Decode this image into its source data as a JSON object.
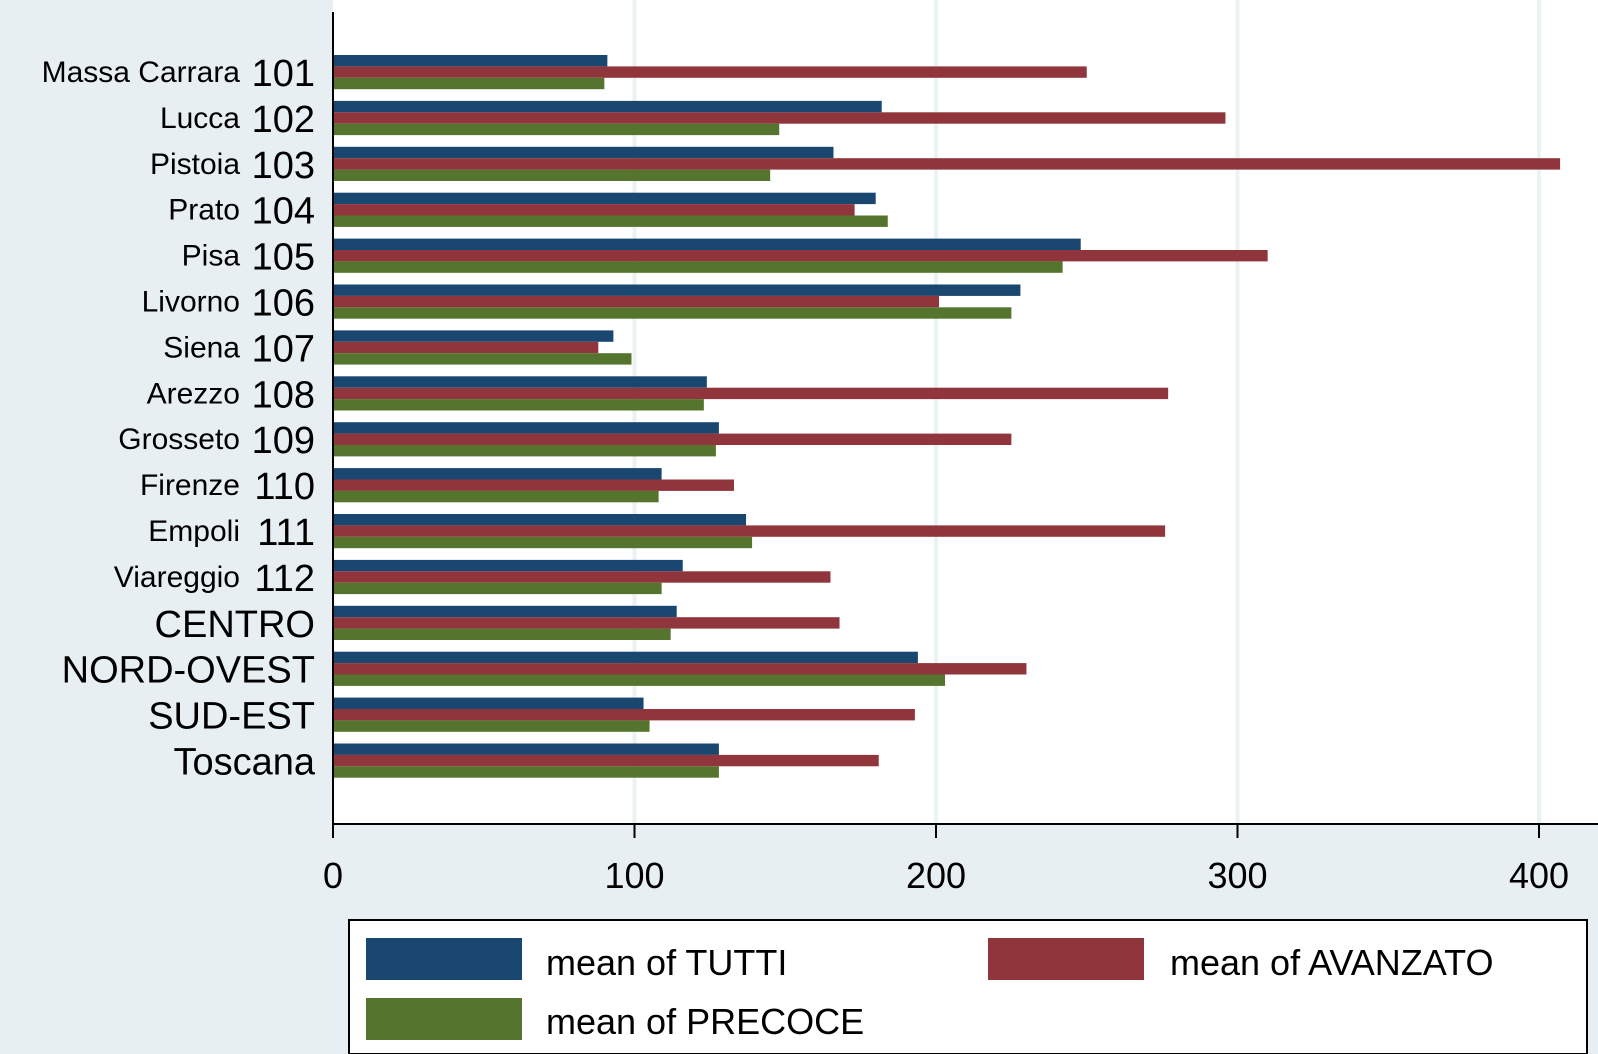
{
  "chart_data": {
    "type": "bar",
    "orientation": "horizontal",
    "grouped": true,
    "title": "",
    "xlabel": "",
    "ylabel": "",
    "xlim": [
      0,
      420
    ],
    "xticks": [
      0,
      100,
      200,
      300,
      400
    ],
    "grid": true,
    "legend_position": "bottom",
    "categories": [
      {
        "name": "Massa Carrara",
        "code": "101"
      },
      {
        "name": "Lucca",
        "code": "102"
      },
      {
        "name": "Pistoia",
        "code": "103"
      },
      {
        "name": "Prato",
        "code": "104"
      },
      {
        "name": "Pisa",
        "code": "105"
      },
      {
        "name": "Livorno",
        "code": "106"
      },
      {
        "name": "Siena",
        "code": "107"
      },
      {
        "name": "Arezzo",
        "code": "108"
      },
      {
        "name": "Grosseto",
        "code": "109"
      },
      {
        "name": "Firenze",
        "code": "110"
      },
      {
        "name": "Empoli",
        "code": "111"
      },
      {
        "name": "Viareggio",
        "code": "112"
      },
      {
        "name": "",
        "code": "CENTRO"
      },
      {
        "name": "",
        "code": "NORD-OVEST"
      },
      {
        "name": "",
        "code": "SUD-EST"
      },
      {
        "name": "",
        "code": "Toscana"
      }
    ],
    "series": [
      {
        "name": "mean of TUTTI",
        "color": "#1a476f",
        "values": [
          91,
          182,
          166,
          180,
          248,
          228,
          93,
          124,
          128,
          109,
          137,
          116,
          114,
          194,
          103,
          128
        ]
      },
      {
        "name": "mean of AVANZATO",
        "color": "#90353b",
        "values": [
          250,
          296,
          407,
          173,
          310,
          201,
          88,
          277,
          225,
          133,
          276,
          165,
          168,
          230,
          193,
          181
        ]
      },
      {
        "name": "mean of PRECOCE",
        "color": "#55752f",
        "values": [
          90,
          148,
          145,
          184,
          242,
          225,
          99,
          123,
          127,
          108,
          139,
          109,
          112,
          203,
          105,
          128
        ]
      }
    ]
  }
}
